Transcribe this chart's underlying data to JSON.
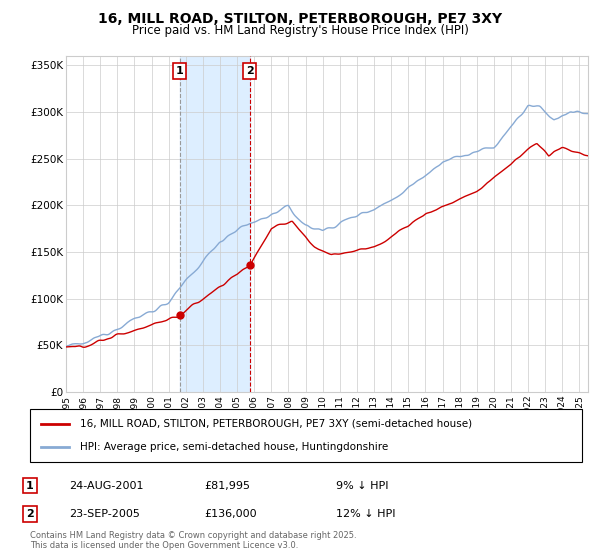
{
  "title": "16, MILL ROAD, STILTON, PETERBOROUGH, PE7 3XY",
  "subtitle": "Price paid vs. HM Land Registry's House Price Index (HPI)",
  "legend_line1": "16, MILL ROAD, STILTON, PETERBOROUGH, PE7 3XY (semi-detached house)",
  "legend_line2": "HPI: Average price, semi-detached house, Huntingdonshire",
  "footer": "Contains HM Land Registry data © Crown copyright and database right 2025.\nThis data is licensed under the Open Government Licence v3.0.",
  "transaction1_date": "24-AUG-2001",
  "transaction1_price": "£81,995",
  "transaction1_hpi": "9% ↓ HPI",
  "transaction2_date": "23-SEP-2005",
  "transaction2_price": "£136,000",
  "transaction2_hpi": "12% ↓ HPI",
  "sale1_year": 2001.65,
  "sale1_price": 81995,
  "sale2_year": 2005.73,
  "sale2_price": 136000,
  "ylim": [
    0,
    360000
  ],
  "xlim_start": 1995,
  "xlim_end": 2025.5,
  "property_color": "#cc0000",
  "hpi_color": "#88aad4",
  "shaded_color": "#ddeeff",
  "vline1_color": "#999999",
  "vline2_color": "#cc0000",
  "grid_color": "#cccccc",
  "background_color": "#ffffff"
}
